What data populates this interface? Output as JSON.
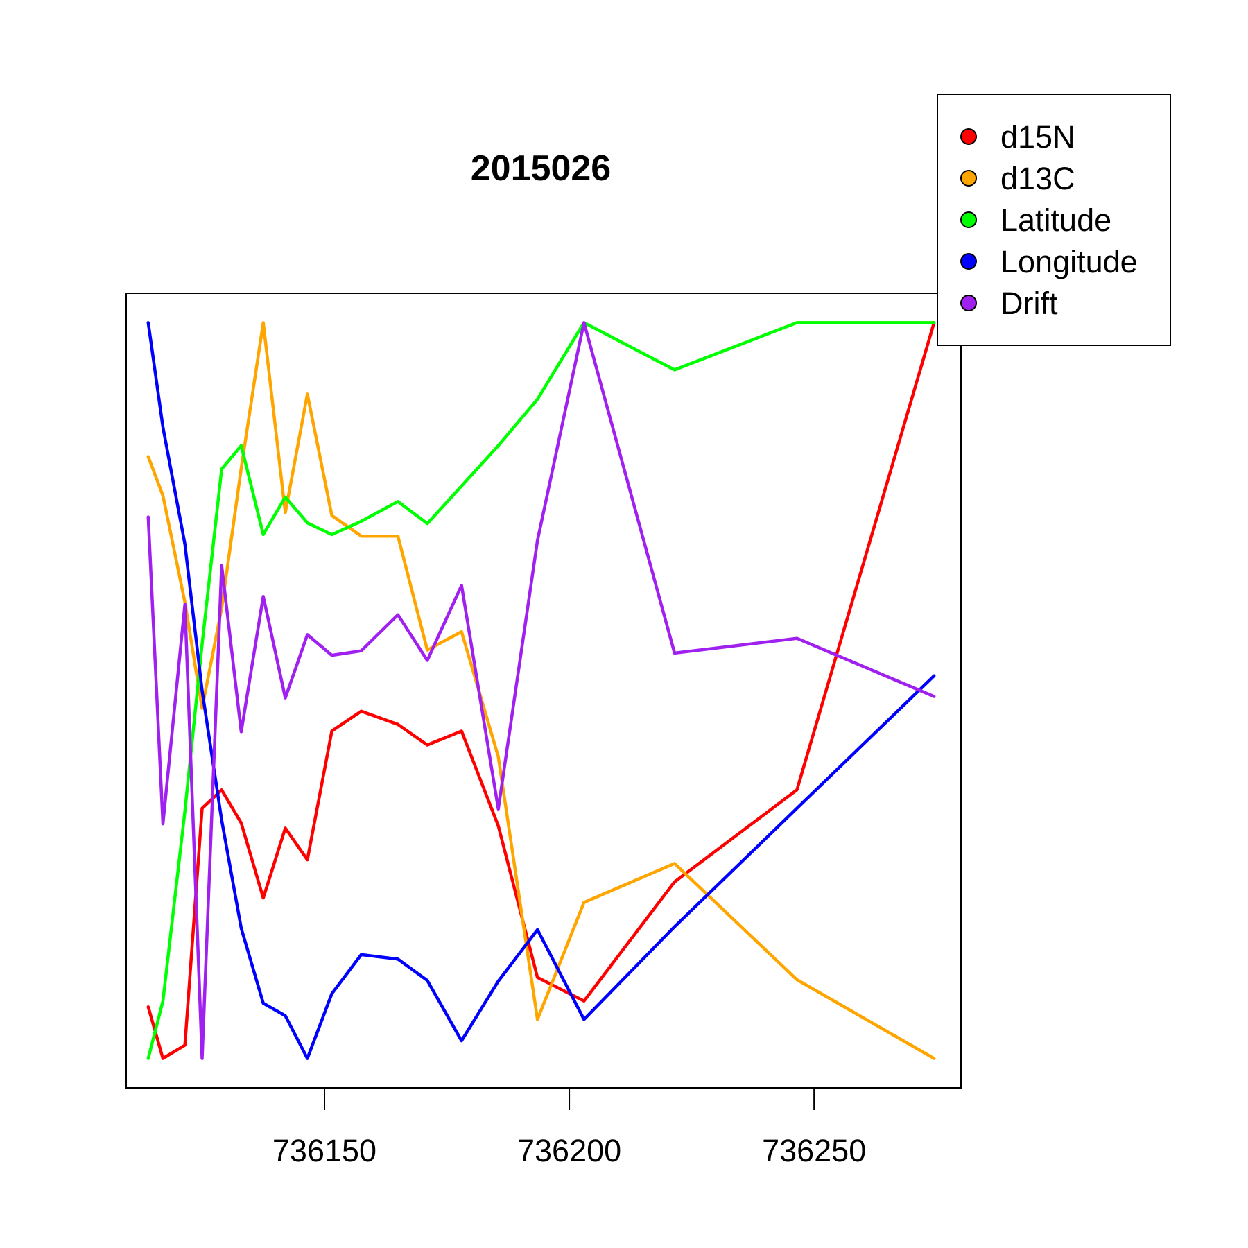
{
  "chart_data": {
    "type": "line",
    "title": "2015026",
    "xlabel": "",
    "ylabel": "",
    "xlim": [
      736109.5,
      736280
    ],
    "ylim": [
      -0.04,
      1.04
    ],
    "x_ticks": [
      736150,
      736200,
      736250
    ],
    "x_tick_labels": [
      "736150",
      "736200",
      "736250"
    ],
    "y_axis_ticks_shown": false,
    "y_scale": "each series normalized to its own range (0-1)",
    "grid": false,
    "legend_position": "top-right, outside plot area",
    "x": [
      736114,
      736117,
      736121.5,
      736125,
      736129,
      736133,
      736137.5,
      736142,
      736146.5,
      736151.5,
      736157.5,
      736165,
      736171,
      736178,
      736185.5,
      736193.5,
      736203,
      736221.5,
      736246.5,
      736274.5
    ],
    "series": [
      {
        "name": "d15N",
        "color": "#FF0000",
        "values": [
          0.07,
          0.0,
          0.018,
          0.34,
          0.365,
          0.32,
          0.218,
          0.313,
          0.27,
          0.445,
          0.472,
          0.454,
          0.426,
          0.445,
          0.316,
          0.11,
          0.078,
          0.24,
          0.365,
          1.0
        ]
      },
      {
        "name": "d13C",
        "color": "#FFA500",
        "values": [
          0.818,
          0.765,
          0.62,
          0.476,
          0.612,
          0.802,
          1.0,
          0.742,
          0.903,
          0.738,
          0.71,
          0.71,
          0.555,
          0.58,
          0.41,
          0.053,
          0.212,
          0.265,
          0.107,
          0.0
        ]
      },
      {
        "name": "Latitude",
        "color": "#00FF00",
        "values": [
          0.0,
          0.078,
          0.336,
          0.563,
          0.801,
          0.833,
          0.712,
          0.763,
          0.728,
          0.712,
          0.73,
          0.757,
          0.727,
          0.778,
          0.833,
          0.896,
          1.0,
          0.936,
          1.0,
          1.0
        ]
      },
      {
        "name": "Longitude",
        "color": "#0000FF",
        "values": [
          1.0,
          0.858,
          0.699,
          0.5,
          0.324,
          0.177,
          0.075,
          0.058,
          0.0,
          0.088,
          0.141,
          0.135,
          0.106,
          0.024,
          0.105,
          0.175,
          0.053,
          0.179,
          0.34,
          0.52
        ]
      },
      {
        "name": "Drift",
        "color": "#A020F0",
        "values": [
          0.736,
          0.319,
          0.617,
          0.0,
          0.67,
          0.444,
          0.628,
          0.49,
          0.576,
          0.548,
          0.554,
          0.603,
          0.541,
          0.643,
          0.339,
          0.704,
          1.0,
          0.551,
          0.571,
          0.492
        ]
      }
    ]
  }
}
